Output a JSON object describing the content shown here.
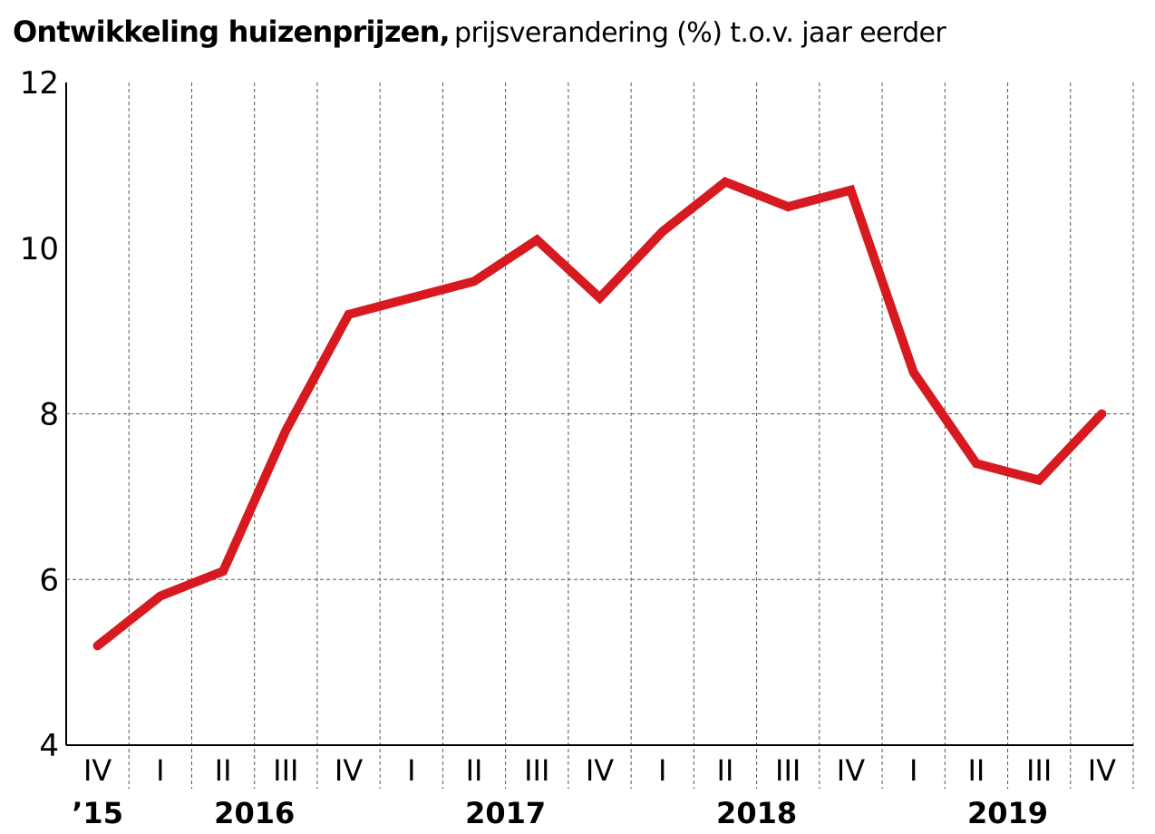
{
  "chart_data": {
    "type": "line",
    "title": "Ontwikkeling huizenprijzen,",
    "subtitle": "prijsverandering (%) t.o.v. jaar eerder",
    "x": [
      "IV",
      "I",
      "II",
      "III",
      "IV",
      "I",
      "II",
      "III",
      "IV",
      "I",
      "II",
      "III",
      "IV",
      "I",
      "II",
      "III",
      "IV"
    ],
    "years": [
      {
        "label": "’15",
        "first": 0,
        "last": 0
      },
      {
        "label": "2016",
        "first": 1,
        "last": 4
      },
      {
        "label": "2017",
        "first": 5,
        "last": 8
      },
      {
        "label": "2018",
        "first": 9,
        "last": 12
      },
      {
        "label": "2019",
        "first": 13,
        "last": 16
      }
    ],
    "series": [
      {
        "values": [
          5.2,
          5.8,
          6.1,
          7.8,
          9.2,
          9.4,
          9.6,
          10.1,
          9.4,
          10.2,
          10.8,
          10.5,
          10.7,
          8.5,
          7.4,
          7.2,
          8.0
        ]
      }
    ],
    "yticks": [
      4,
      6,
      8,
      10,
      12
    ],
    "ylim": [
      4,
      12
    ],
    "horizontal_grid": [
      6,
      8
    ],
    "grid": true,
    "line_color": "#d71920"
  }
}
